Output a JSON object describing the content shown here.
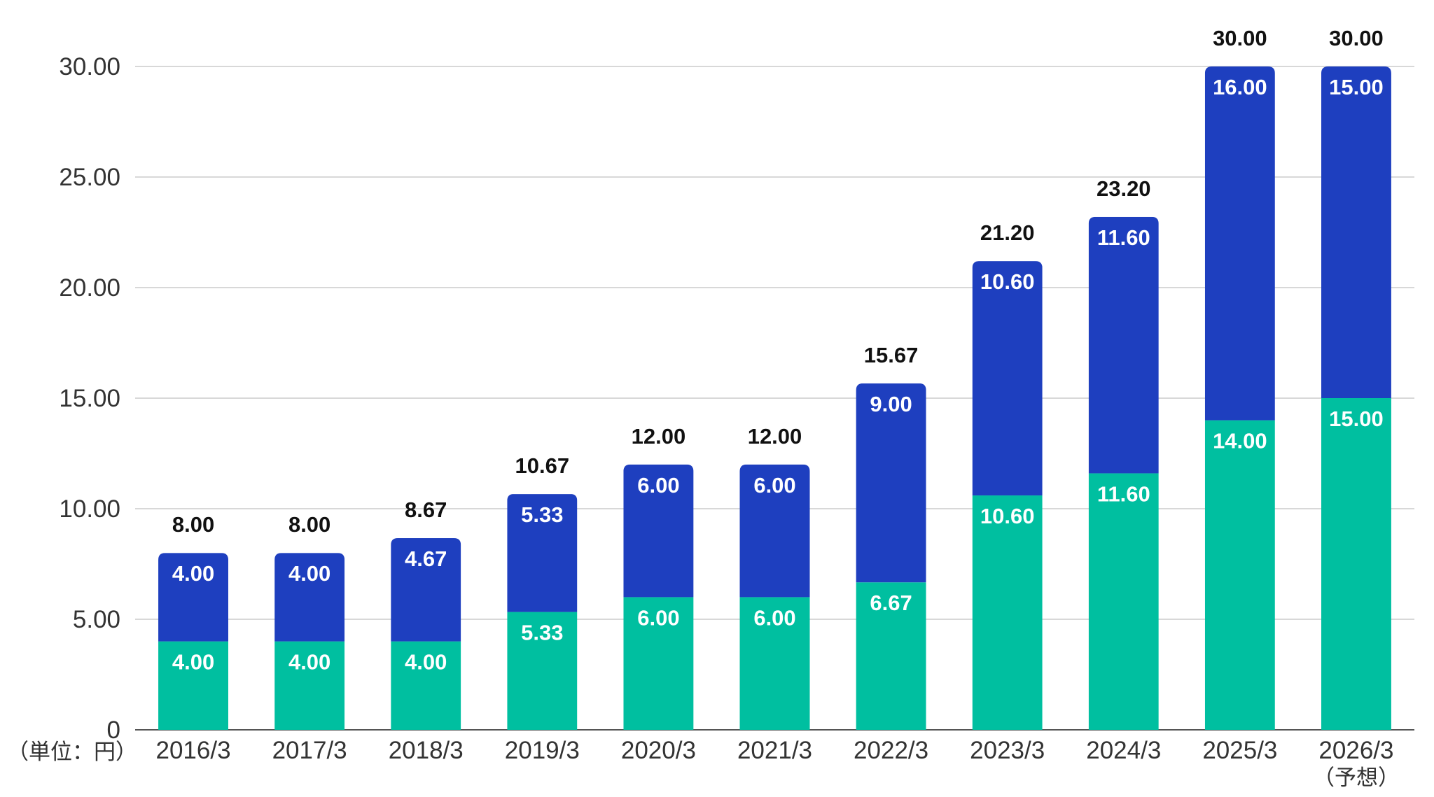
{
  "chart_data": {
    "type": "bar",
    "stacked": true,
    "unit_label": "（単位：円）",
    "categories": [
      "2016/3",
      "2017/3",
      "2018/3",
      "2019/3",
      "2020/3",
      "2021/3",
      "2022/3",
      "2023/3",
      "2024/3",
      "2025/3",
      "2026/3"
    ],
    "category_notes": [
      "",
      "",
      "",
      "",
      "",
      "",
      "",
      "",
      "",
      "",
      "（予想）"
    ],
    "series": [
      {
        "color": "#00bfa0",
        "values": [
          4.0,
          4.0,
          4.0,
          5.33,
          6.0,
          6.0,
          6.67,
          10.6,
          11.6,
          14.0,
          15.0
        ],
        "labels": [
          "4.00",
          "4.00",
          "4.00",
          "5.33",
          "6.00",
          "6.00",
          "6.67",
          "10.60",
          "11.60",
          "14.00",
          "15.00"
        ]
      },
      {
        "color": "#1e3fbf",
        "values": [
          4.0,
          4.0,
          4.67,
          5.33,
          6.0,
          6.0,
          9.0,
          10.6,
          11.6,
          16.0,
          15.0
        ],
        "labels": [
          "4.00",
          "4.00",
          "4.67",
          "5.33",
          "6.00",
          "6.00",
          "9.00",
          "10.60",
          "11.60",
          "16.00",
          "15.00"
        ]
      }
    ],
    "totals": [
      8.0,
      8.0,
      8.67,
      10.67,
      12.0,
      12.0,
      15.67,
      21.2,
      23.2,
      30.0,
      30.0
    ],
    "total_labels": [
      "8.00",
      "8.00",
      "8.67",
      "10.67",
      "12.00",
      "12.00",
      "15.67",
      "21.20",
      "23.20",
      "30.00",
      "30.00"
    ],
    "ylim": [
      0,
      30
    ],
    "yticks": [
      0,
      5,
      10,
      15,
      20,
      25,
      30
    ],
    "ytick_labels": [
      "0",
      "5.00",
      "10.00",
      "15.00",
      "20.00",
      "25.00",
      "30.00"
    ],
    "grid": true,
    "legend": "none",
    "title": "",
    "xlabel": "",
    "ylabel": ""
  }
}
